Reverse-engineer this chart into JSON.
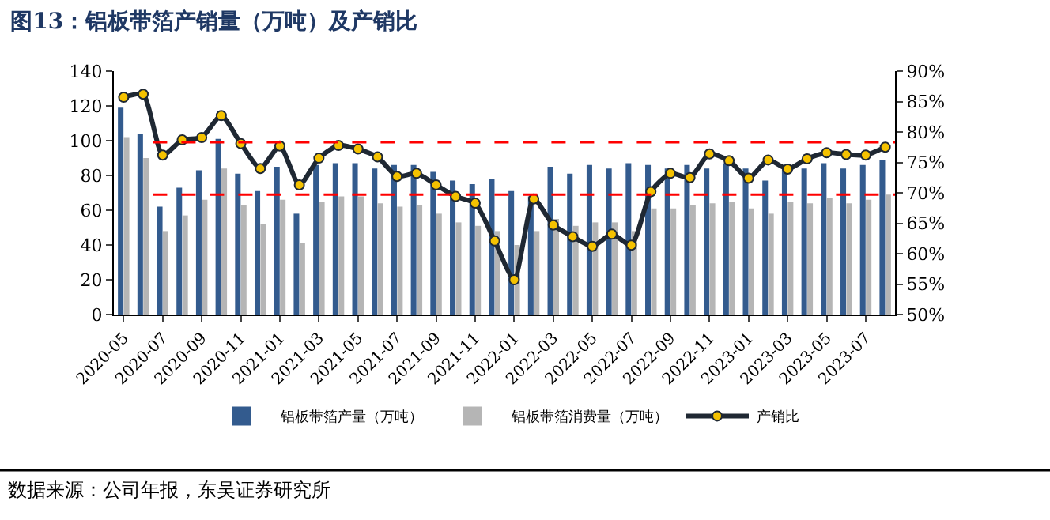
{
  "chart_data": {
    "type": "bar",
    "title": "图13：铝板带箔产销量（万吨）及产销比",
    "categories": [
      "2020-05",
      null,
      "2020-07",
      null,
      "2020-09",
      null,
      "2020-11",
      null,
      "2021-01",
      null,
      "2021-03",
      null,
      "2021-05",
      null,
      "2021-07",
      null,
      "2021-09",
      null,
      "2021-11",
      null,
      "2022-01",
      null,
      "2022-03",
      null,
      "2022-05",
      null,
      "2022-07",
      null,
      "2022-09",
      null,
      "2022-11",
      null,
      "2023-01",
      null,
      "2023-03",
      null,
      "2023-05",
      null,
      "2023-07",
      null
    ],
    "series": [
      {
        "name": "铝板带箔产量（万吨）",
        "color": "#335b8e",
        "values": [
          119,
          104,
          62,
          73,
          83,
          101,
          81,
          71,
          85,
          58,
          86,
          87,
          87,
          84,
          86,
          86,
          82,
          77,
          75,
          78,
          71,
          68,
          85,
          81,
          86,
          84,
          87,
          86,
          84,
          86,
          84,
          87,
          84,
          77,
          86,
          84,
          87,
          84,
          86,
          89
        ]
      },
      {
        "name": "铝板带箔消费量（万吨）",
        "color": "#b5b5b5",
        "values": [
          102,
          90,
          48,
          57,
          66,
          84,
          63,
          52,
          66,
          41,
          65,
          68,
          68,
          64,
          62,
          63,
          58,
          53,
          51,
          48,
          40,
          48,
          55,
          51,
          53,
          53,
          48,
          61,
          61,
          63,
          64,
          65,
          61,
          58,
          65,
          64,
          67,
          64,
          66,
          69
        ]
      },
      {
        "name": "产销比",
        "type": "line",
        "axis": "y2",
        "color": "#1f2833",
        "marker": "circle",
        "values": [
          85.7,
          86.2,
          76.2,
          78.7,
          79.1,
          82.7,
          78.1,
          74.0,
          77.7,
          71.3,
          75.7,
          77.8,
          77.2,
          75.9,
          72.7,
          73.2,
          71.3,
          69.4,
          68.3,
          62.1,
          55.7,
          69.0,
          64.7,
          62.8,
          61.2,
          63.2,
          61.4,
          70.2,
          73.2,
          72.5,
          76.4,
          75.3,
          72.4,
          75.4,
          73.9,
          75.6,
          76.6,
          76.3,
          76.2,
          77.5
        ]
      }
    ],
    "ylim": [
      0,
      140
    ],
    "yticks": [
      0,
      20,
      40,
      60,
      80,
      100,
      120,
      140
    ],
    "y2lim": [
      50,
      90
    ],
    "y2ticks": [
      {
        "value": 50,
        "label": "50%"
      },
      {
        "value": 55,
        "label": "55%"
      },
      {
        "value": 60,
        "label": "60%"
      },
      {
        "value": 65,
        "label": "65%"
      },
      {
        "value": 70,
        "label": "70%"
      },
      {
        "value": 75,
        "label": "75%"
      },
      {
        "value": 80,
        "label": "80%"
      },
      {
        "value": 85,
        "label": "85%"
      },
      {
        "value": 90,
        "label": "90%"
      }
    ],
    "ref_lines": [
      {
        "axis": "y2",
        "value": 78.3,
        "color": "#ff0000",
        "line_style": "dashed"
      },
      {
        "axis": "y2",
        "value": 69.7,
        "color": "#ff0000",
        "line_style": "dashed"
      }
    ],
    "grid": false,
    "legend": "bottom",
    "annotations": [
      "数据来源：公司年报，东吴证券研究所"
    ]
  }
}
